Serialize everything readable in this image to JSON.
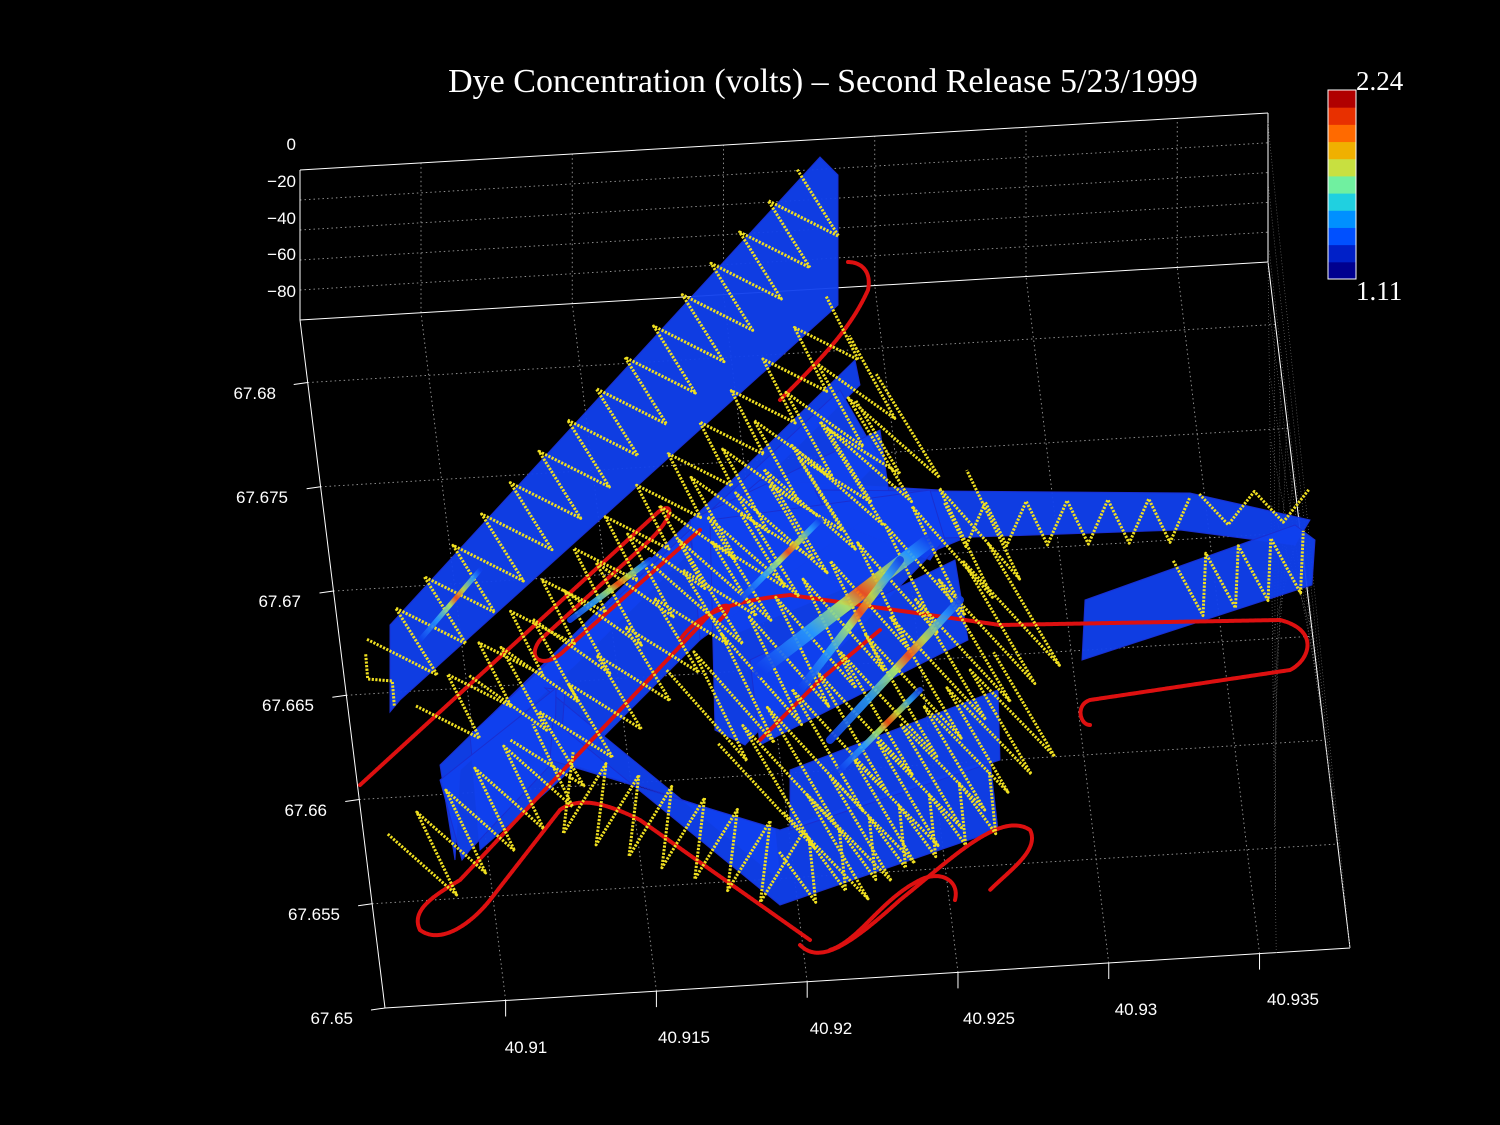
{
  "chart_data": {
    "type": "3d-curtain",
    "title": "Dye Concentration (volts) – Second Release 5/23/1999",
    "x_ticks": [
      "40.91",
      "40.915",
      "40.92",
      "40.925",
      "40.93",
      "40.935"
    ],
    "y_ticks": [
      "67.65",
      "67.655",
      "67.66",
      "67.665",
      "67.67",
      "67.675",
      "67.68"
    ],
    "z_ticks": [
      "0",
      "−20",
      "−40",
      "−60",
      "−80"
    ],
    "xlim": [
      40.906,
      40.938
    ],
    "ylim": [
      67.65,
      67.683
    ],
    "zlim": [
      -90,
      0
    ],
    "colorbar": {
      "min_label": "1.11",
      "max_label": "2.24",
      "colors": [
        "#00008f",
        "#0020c8",
        "#0050ff",
        "#0090ff",
        "#20d0e0",
        "#70f0a0",
        "#c8e040",
        "#f0b000",
        "#ff6a00",
        "#e83000",
        "#b00000"
      ]
    },
    "series_colors": {
      "curtain": "#1040ee",
      "tow_path": "#f0e020",
      "ship_track": "#dd1010"
    },
    "grid": true
  }
}
